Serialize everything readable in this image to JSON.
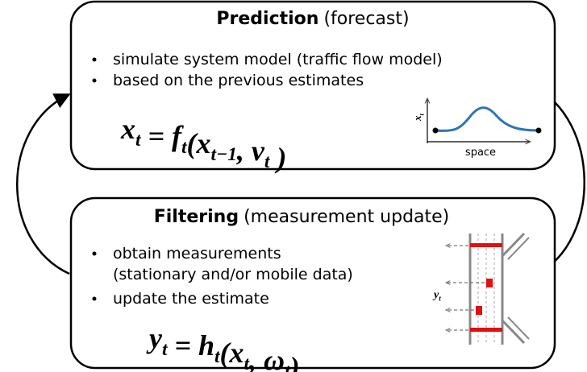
{
  "prediction": {
    "title": "Prediction",
    "subtitle": "(forecast)",
    "bullets": [
      "simulate system model (traffic flow model)",
      "based on the previous estimates"
    ],
    "formula": [
      {
        "base": "x",
        "sub": "t"
      },
      {
        "base": " = "
      },
      {
        "base": "f",
        "sub": "t"
      },
      {
        "base": "("
      },
      {
        "base": "x",
        "sub": "t−1"
      },
      {
        "base": ", "
      },
      {
        "base": "ν",
        "sub": "t"
      },
      {
        "base": " )"
      }
    ],
    "plot": {
      "y_label": {
        "base": "x",
        "sub": "t"
      },
      "x_label": "space"
    }
  },
  "filtering": {
    "title": "Filtering",
    "subtitle": "(measurement update)",
    "bullets": [
      "obtain measurements",
      "(stationary and/or mobile data)",
      "update the estimate"
    ],
    "formula": [
      {
        "base": "y",
        "sub": "t"
      },
      {
        "base": " = "
      },
      {
        "base": "h",
        "sub": "t"
      },
      {
        "base": "("
      },
      {
        "base": "x",
        "sub": "t"
      },
      {
        "base": ", "
      },
      {
        "base": "ω",
        "sub": "t"
      },
      {
        "base": ")"
      }
    ],
    "road": {
      "label": {
        "base": "y",
        "sub": "t"
      }
    }
  }
}
